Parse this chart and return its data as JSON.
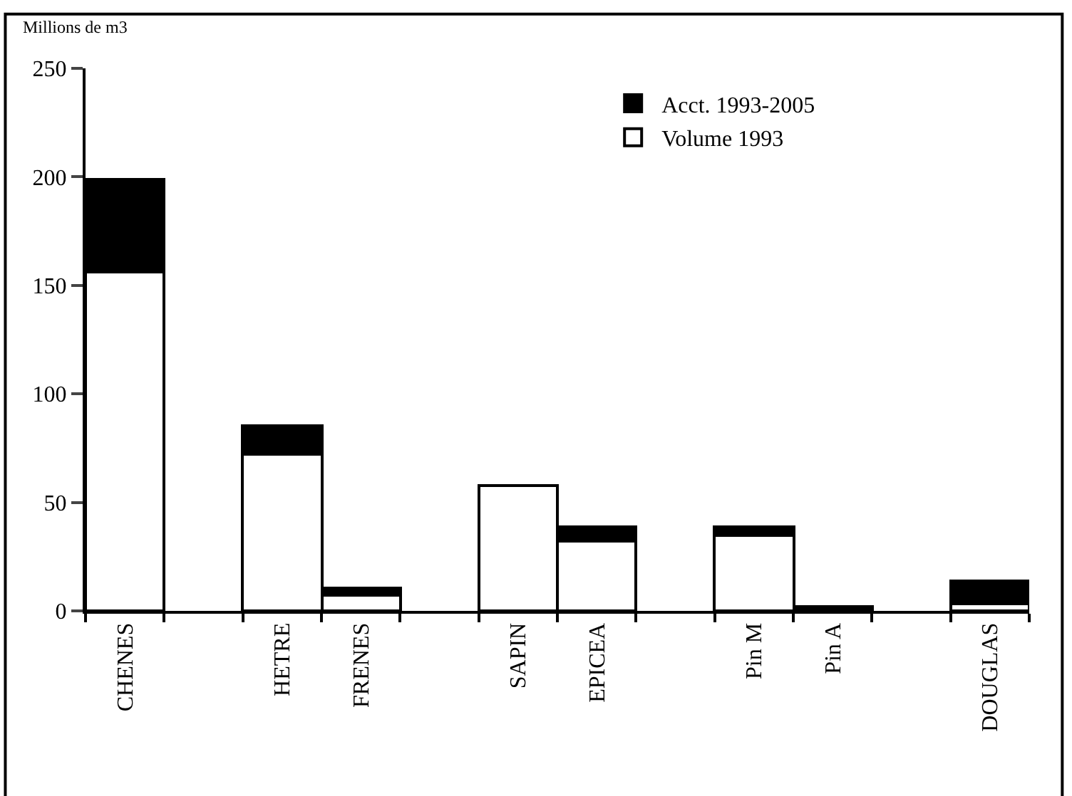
{
  "chart_data": {
    "type": "bar",
    "stacked": true,
    "ylabel": "Millions de m3",
    "categories": [
      "CHENES",
      null,
      "HETRE",
      "FRENES",
      null,
      "SAPIN",
      "EPICEA",
      null,
      "Pin M",
      "Pin A",
      null,
      "DOUGLAS"
    ],
    "series": [
      {
        "name": "Volume 1993",
        "color": "#ffffff",
        "values": [
          156,
          null,
          72,
          7,
          null,
          58,
          32,
          null,
          35,
          0.8,
          null,
          3
        ]
      },
      {
        "name": "Acct. 1993-2005",
        "color": "#000000",
        "values": [
          43,
          null,
          13,
          3.5,
          null,
          0,
          7,
          null,
          3.5,
          1,
          null,
          10.5
        ]
      }
    ],
    "ylim": [
      0,
      250
    ],
    "yticks": [
      0,
      50,
      100,
      150,
      200,
      250
    ],
    "grid": false,
    "legend": "top right"
  }
}
